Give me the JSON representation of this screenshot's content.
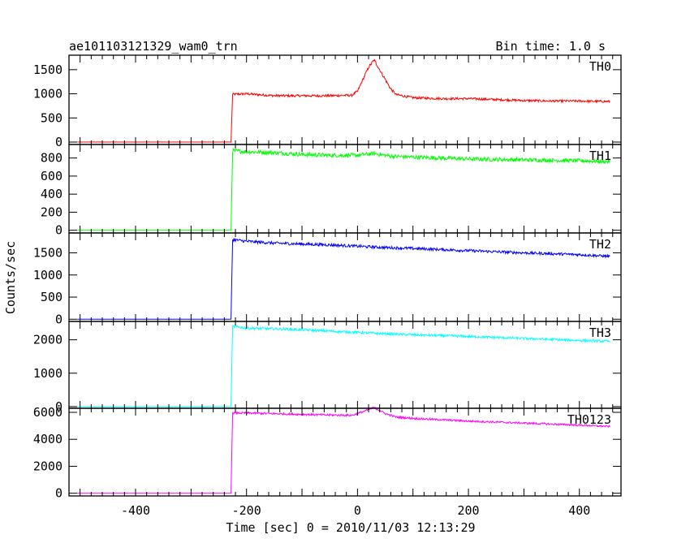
{
  "chart_data": {
    "type": "line",
    "title": "ae101103121329_wam0_trn",
    "subtitle": "Bin time: 1.0 s",
    "xlabel": "Time [sec] 0 = 2010/11/03 12:13:29",
    "ylabel": "Counts/sec",
    "xlim": [
      -520,
      475
    ],
    "x_ticks": [
      -400,
      -200,
      0,
      200,
      400
    ],
    "grid": false,
    "panels": [
      {
        "name": "TH0",
        "color": "#ff0000",
        "ylim": [
          -50,
          1800
        ],
        "y_ticks": [
          0,
          500,
          1000,
          1500
        ],
        "x": [
          -505,
          -228,
          -225,
          -200,
          -150,
          -100,
          -50,
          -10,
          0,
          10,
          20,
          30,
          40,
          50,
          60,
          70,
          100,
          150,
          200,
          250,
          300,
          350,
          400,
          455
        ],
        "y": [
          0,
          0,
          990,
          1000,
          960,
          960,
          960,
          970,
          1050,
          1300,
          1550,
          1700,
          1500,
          1300,
          1100,
          980,
          920,
          900,
          900,
          880,
          860,
          850,
          850,
          840
        ]
      },
      {
        "name": "TH1",
        "color": "#00ff00",
        "ylim": [
          -30,
          950
        ],
        "y_ticks": [
          0,
          200,
          400,
          600,
          800
        ],
        "x": [
          -505,
          -228,
          -225,
          -200,
          -150,
          -100,
          -50,
          0,
          30,
          60,
          100,
          200,
          300,
          400,
          455
        ],
        "y": [
          0,
          0,
          880,
          870,
          860,
          840,
          830,
          830,
          850,
          820,
          810,
          790,
          780,
          770,
          760
        ]
      },
      {
        "name": "TH2",
        "color": "#0000ff",
        "ylim": [
          -50,
          1950
        ],
        "y_ticks": [
          0,
          500,
          1000,
          1500
        ],
        "x": [
          -505,
          -228,
          -225,
          -200,
          -150,
          -100,
          -50,
          0,
          50,
          100,
          200,
          300,
          400,
          455
        ],
        "y": [
          0,
          0,
          1800,
          1760,
          1720,
          1700,
          1680,
          1650,
          1620,
          1600,
          1550,
          1500,
          1460,
          1420
        ]
      },
      {
        "name": "TH3",
        "color": "#00ffff",
        "ylim": [
          -50,
          2550
        ],
        "y_ticks": [
          0,
          1000,
          2000
        ],
        "x": [
          -505,
          -228,
          -225,
          -200,
          -150,
          -100,
          -50,
          0,
          50,
          100,
          200,
          300,
          400,
          455
        ],
        "y": [
          0,
          0,
          2400,
          2350,
          2330,
          2300,
          2260,
          2220,
          2180,
          2150,
          2100,
          2040,
          1980,
          1950
        ]
      },
      {
        "name": "TH0123",
        "color": "#ff00ff",
        "ylim": [
          -200,
          6300
        ],
        "y_ticks": [
          0,
          2000,
          4000,
          6000
        ],
        "x": [
          -505,
          -228,
          -225,
          -200,
          -150,
          -100,
          -50,
          -10,
          0,
          10,
          20,
          30,
          40,
          50,
          70,
          100,
          150,
          200,
          300,
          400,
          455
        ],
        "y": [
          0,
          0,
          5950,
          5950,
          5900,
          5850,
          5800,
          5780,
          5900,
          6050,
          6200,
          6350,
          6150,
          5900,
          5650,
          5550,
          5450,
          5350,
          5200,
          5050,
          4950
        ]
      }
    ]
  }
}
